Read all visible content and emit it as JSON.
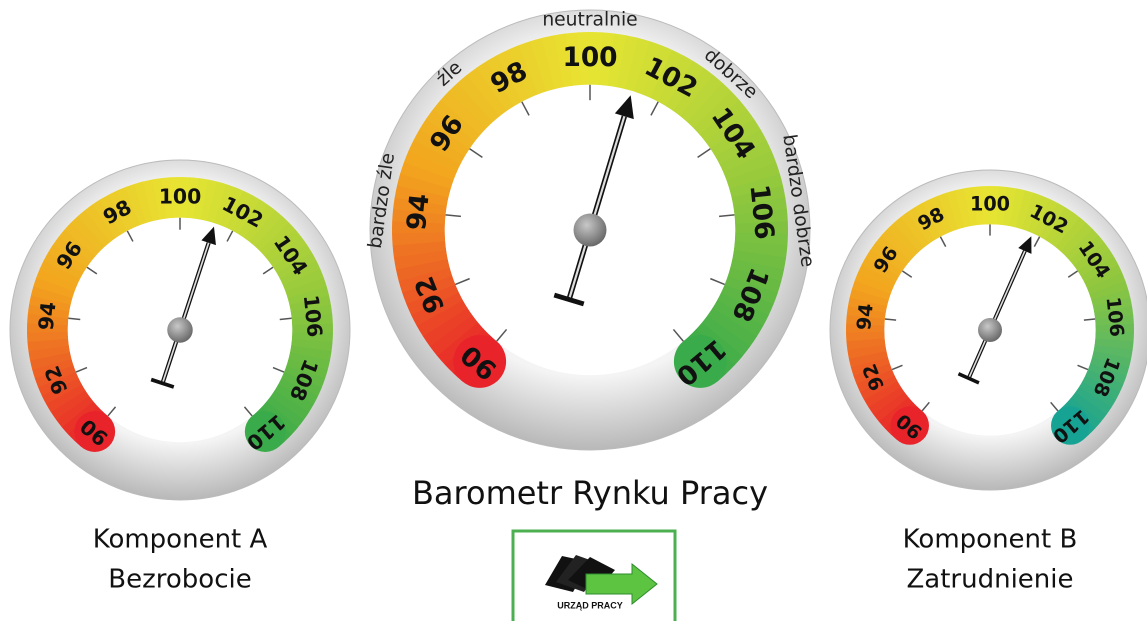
{
  "chart_data": [
    {
      "type": "gauge",
      "title": [
        "Komponent A",
        "Bezrobocie"
      ],
      "ylim": [
        90,
        110
      ],
      "yticks": [
        90,
        92,
        94,
        96,
        98,
        100,
        102,
        104,
        106,
        108,
        110
      ],
      "value": 101.3,
      "colors": [
        "#e8232a",
        "#f2a51e",
        "#e8e532",
        "#9acb3c",
        "#3aab4a"
      ]
    },
    {
      "type": "gauge",
      "title": [
        "Barometr Rynku Pracy"
      ],
      "zones": [
        "bardzo źle",
        "źle",
        "neutralnie",
        "dobrze",
        "bardzo dobrze"
      ],
      "ylim": [
        90,
        110
      ],
      "yticks": [
        90,
        92,
        94,
        96,
        98,
        100,
        102,
        104,
        106,
        108,
        110
      ],
      "value": 101.2,
      "colors": [
        "#e8232a",
        "#f2a51e",
        "#e8e532",
        "#9acb3c",
        "#3aab4a"
      ]
    },
    {
      "type": "gauge",
      "title": [
        "Komponent B",
        "Zatrudnienie"
      ],
      "ylim": [
        90,
        110
      ],
      "yticks": [
        90,
        92,
        94,
        96,
        98,
        100,
        102,
        104,
        106,
        108,
        110
      ],
      "value": 101.7,
      "colors": [
        "#e8232a",
        "#f2a51e",
        "#e8e532",
        "#8cc63f",
        "#16a394"
      ]
    }
  ],
  "logo": {
    "text": "URZĄD PRACY"
  }
}
